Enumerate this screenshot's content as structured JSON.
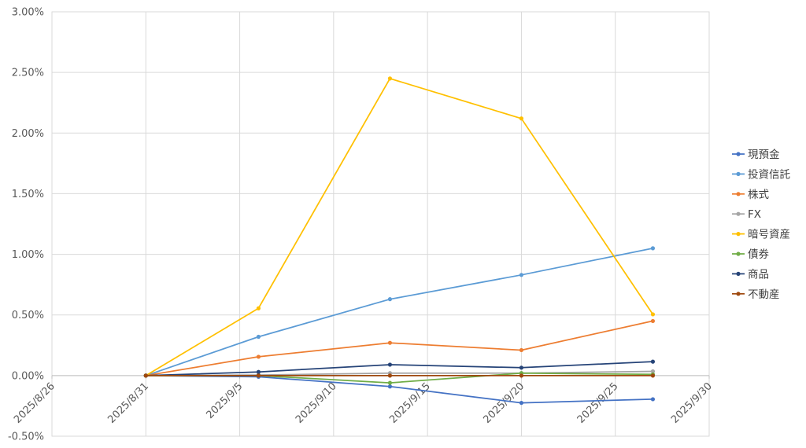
{
  "chart_data": {
    "type": "line",
    "x": [
      "2025-08-31",
      "2025-09-06",
      "2025-09-13",
      "2025-09-20",
      "2025-09-27"
    ],
    "series": [
      {
        "name": "現預金",
        "color": "#4472C4",
        "values": [
          0.0,
          -0.01,
          -0.09,
          -0.225,
          -0.195
        ]
      },
      {
        "name": "投資信託",
        "color": "#5B9BD5",
        "values": [
          0.0,
          0.32,
          0.63,
          0.83,
          1.05
        ]
      },
      {
        "name": "株式",
        "color": "#ED7D31",
        "values": [
          0.0,
          0.155,
          0.27,
          0.21,
          0.45
        ]
      },
      {
        "name": "FX",
        "color": "#A5A5A5",
        "values": [
          0.0,
          0.005,
          0.02,
          0.02,
          0.035
        ]
      },
      {
        "name": "暗号資産",
        "color": "#FFC000",
        "values": [
          0.0,
          0.555,
          2.45,
          2.12,
          0.505
        ]
      },
      {
        "name": "債券",
        "color": "#70AD47",
        "values": [
          0.0,
          0.0,
          -0.06,
          0.02,
          0.01
        ]
      },
      {
        "name": "商品",
        "color": "#264478",
        "values": [
          0.0,
          0.03,
          0.09,
          0.065,
          0.115
        ]
      },
      {
        "name": "不動産",
        "color": "#9E480E",
        "values": [
          0.0,
          0.0,
          0.0,
          0.0,
          0.0
        ]
      }
    ],
    "xticks": [
      "2025/8/26",
      "2025/8/31",
      "2025/9/5",
      "2025/9/10",
      "2025/9/15",
      "2025/9/20",
      "2025/9/25",
      "2025/9/30"
    ],
    "yticks": [
      "-0.50%",
      "0.00%",
      "0.50%",
      "1.00%",
      "1.50%",
      "2.00%",
      "2.50%",
      "3.00%"
    ],
    "xlim": [
      "2025-08-26",
      "2025-09-30"
    ],
    "ylim": [
      -0.5,
      3.0
    ],
    "y_unit": "%",
    "grid": true,
    "legend": "right"
  }
}
